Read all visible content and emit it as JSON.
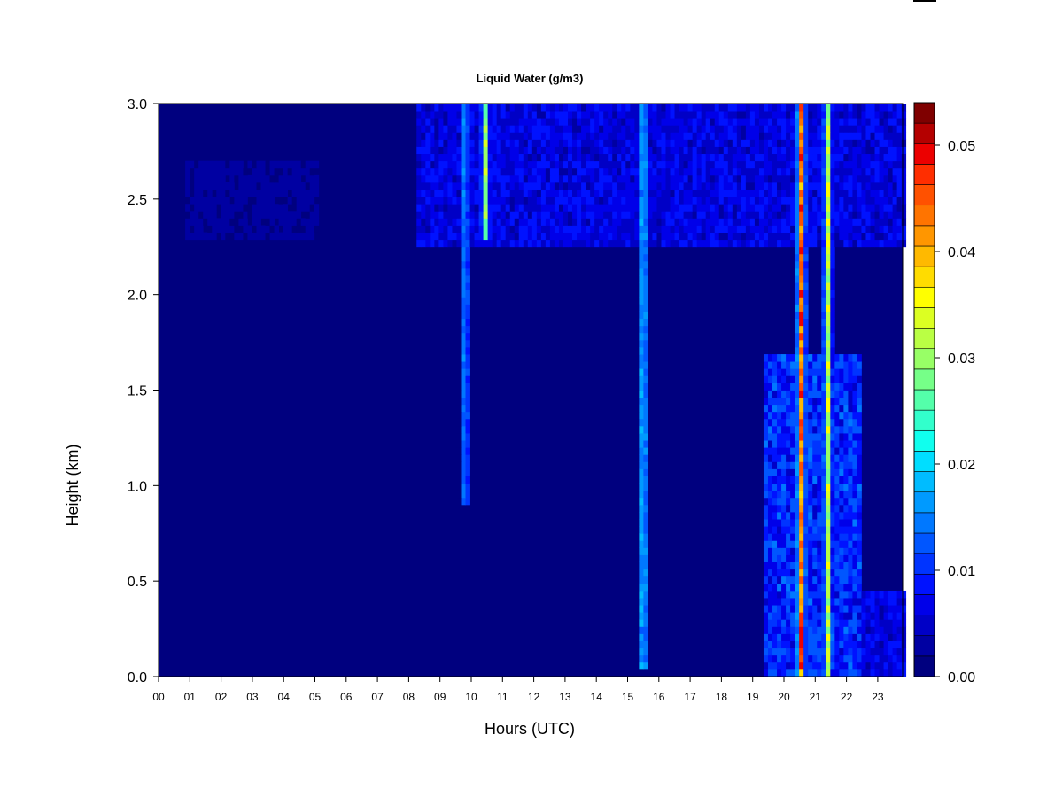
{
  "chart_data": {
    "type": "heatmap",
    "title": "Liquid Water (g/m3)",
    "xlabel": "Hours (UTC)",
    "ylabel": "Height (km)",
    "xlim": [
      0,
      23.9
    ],
    "ylim": [
      0,
      3.0
    ],
    "x_ticks": [
      "00",
      "01",
      "02",
      "03",
      "04",
      "05",
      "06",
      "07",
      "08",
      "09",
      "10",
      "11",
      "12",
      "13",
      "14",
      "15",
      "16",
      "17",
      "18",
      "19",
      "20",
      "21",
      "22",
      "23"
    ],
    "y_ticks": [
      "0.0",
      "0.5",
      "1.0",
      "1.5",
      "2.0",
      "2.5",
      "3.0"
    ],
    "colorbar": {
      "min": 0.0,
      "max": 0.054,
      "tick_labels": [
        "0.00",
        "0.01",
        "0.02",
        "0.03",
        "0.04",
        "0.05"
      ],
      "tick_values": [
        0.0,
        0.01,
        0.02,
        0.03,
        0.04,
        0.05
      ],
      "levels": 27,
      "colors": [
        "#00007f",
        "#0000a2",
        "#0000c6",
        "#0000e9",
        "#0012ff",
        "#0034ff",
        "#0056ff",
        "#0078ff",
        "#009aff",
        "#00bcff",
        "#00deff",
        "#10ffee",
        "#32ffcc",
        "#54ffaa",
        "#76ff88",
        "#98ff66",
        "#baff44",
        "#dcff22",
        "#ffff00",
        "#ffdc00",
        "#ffb900",
        "#ff9600",
        "#ff7400",
        "#ff5100",
        "#ff2e00",
        "#ec0000",
        "#b40000",
        "#7f0000"
      ]
    },
    "features": [
      {
        "kind": "cloud_layer",
        "x_range": [
          8.3,
          23.9
        ],
        "y_range": [
          2.25,
          3.0
        ],
        "value": 0.008
      },
      {
        "kind": "cloud_layer",
        "x_range": [
          0.9,
          5.1
        ],
        "y_range": [
          2.3,
          2.7
        ],
        "value": 0.003
      },
      {
        "kind": "column",
        "x": 10.45,
        "y_range": [
          2.3,
          3.0
        ],
        "value": 0.035
      },
      {
        "kind": "column",
        "x": 9.8,
        "y_range": [
          0.9,
          3.0
        ],
        "value": 0.02
      },
      {
        "kind": "column",
        "x": 15.5,
        "y_range": [
          0.05,
          3.0
        ],
        "value": 0.024
      },
      {
        "kind": "column",
        "x": 20.55,
        "y_range": [
          0.0,
          3.0
        ],
        "value": 0.052
      },
      {
        "kind": "column",
        "x": 21.4,
        "y_range": [
          0.0,
          3.0
        ],
        "value": 0.038
      },
      {
        "kind": "region",
        "x_range": [
          19.3,
          22.5
        ],
        "y_range": [
          0.0,
          1.7
        ],
        "value": 0.012
      },
      {
        "kind": "region",
        "x_range": [
          22.2,
          23.9
        ],
        "y_range": [
          0.0,
          0.45
        ],
        "value": 0.008
      }
    ]
  }
}
